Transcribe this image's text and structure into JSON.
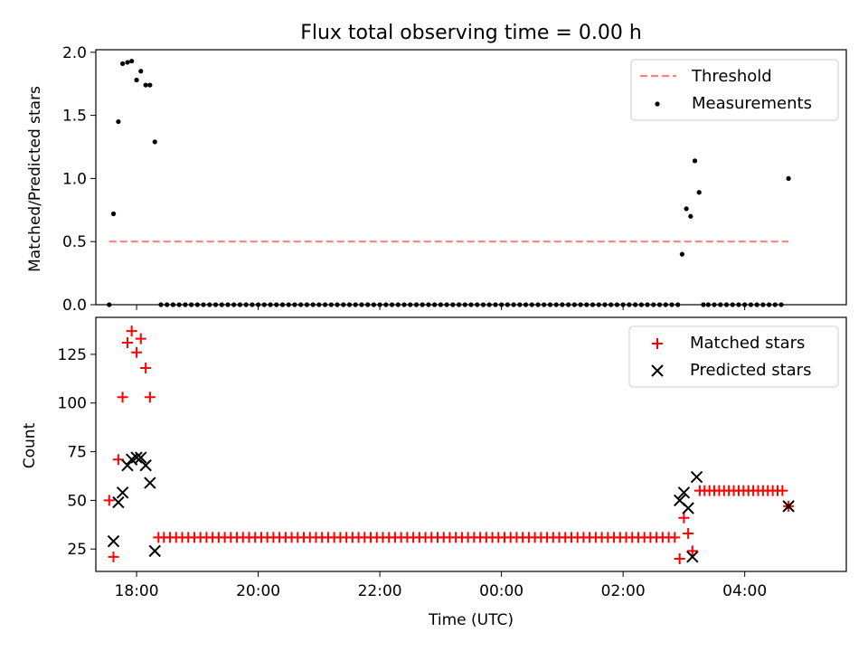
{
  "figure": {
    "title": "Flux total observing time = 0.00 h"
  },
  "chart_data": [
    {
      "type": "scatter",
      "ylabel": "Matched/Predicted stars",
      "xlim": [
        17.33,
        29.67
      ],
      "ylim": [
        0.0,
        2.02
      ],
      "yticks": [
        0.0,
        0.5,
        1.0,
        1.5,
        2.0
      ],
      "ytick_labels": [
        "0.0",
        "0.5",
        "1.0",
        "1.5",
        "2.0"
      ],
      "legend": {
        "placement": "top-right",
        "entries": [
          "Threshold",
          "Measurements"
        ]
      },
      "threshold": {
        "name": "Threshold",
        "y": 0.5,
        "x": [
          17.55,
          28.72
        ],
        "color": "#ff7f7f"
      },
      "series": [
        {
          "name": "Measurements",
          "color": "#000000",
          "marker": "dot",
          "points": [
            [
              17.55,
              0.0
            ],
            [
              17.62,
              0.72
            ],
            [
              17.7,
              1.45
            ],
            [
              17.77,
              1.91
            ],
            [
              17.85,
              1.92
            ],
            [
              17.92,
              1.93
            ],
            [
              18.0,
              1.78
            ],
            [
              18.07,
              1.85
            ],
            [
              18.15,
              1.74
            ],
            [
              18.22,
              1.74
            ],
            [
              18.3,
              1.29
            ],
            [
              18.4,
              0.0
            ],
            [
              18.5,
              0.0
            ],
            [
              18.6,
              0.0
            ],
            [
              18.7,
              0.0
            ],
            [
              18.8,
              0.0
            ],
            [
              18.9,
              0.0
            ],
            [
              19.0,
              0.0
            ],
            [
              19.1,
              0.0
            ],
            [
              19.2,
              0.0
            ],
            [
              19.3,
              0.0
            ],
            [
              19.4,
              0.0
            ],
            [
              19.5,
              0.0
            ],
            [
              19.6,
              0.0
            ],
            [
              19.7,
              0.0
            ],
            [
              19.8,
              0.0
            ],
            [
              19.9,
              0.0
            ],
            [
              20.0,
              0.0
            ],
            [
              20.1,
              0.0
            ],
            [
              20.2,
              0.0
            ],
            [
              20.3,
              0.0
            ],
            [
              20.4,
              0.0
            ],
            [
              20.5,
              0.0
            ],
            [
              20.6,
              0.0
            ],
            [
              20.7,
              0.0
            ],
            [
              20.8,
              0.0
            ],
            [
              20.9,
              0.0
            ],
            [
              21.0,
              0.0
            ],
            [
              21.1,
              0.0
            ],
            [
              21.2,
              0.0
            ],
            [
              21.3,
              0.0
            ],
            [
              21.4,
              0.0
            ],
            [
              21.5,
              0.0
            ],
            [
              21.6,
              0.0
            ],
            [
              21.7,
              0.0
            ],
            [
              21.8,
              0.0
            ],
            [
              21.9,
              0.0
            ],
            [
              22.0,
              0.0
            ],
            [
              22.1,
              0.0
            ],
            [
              22.2,
              0.0
            ],
            [
              22.3,
              0.0
            ],
            [
              22.4,
              0.0
            ],
            [
              22.5,
              0.0
            ],
            [
              22.6,
              0.0
            ],
            [
              22.7,
              0.0
            ],
            [
              22.8,
              0.0
            ],
            [
              22.9,
              0.0
            ],
            [
              23.0,
              0.0
            ],
            [
              23.1,
              0.0
            ],
            [
              23.2,
              0.0
            ],
            [
              23.3,
              0.0
            ],
            [
              23.4,
              0.0
            ],
            [
              23.5,
              0.0
            ],
            [
              23.6,
              0.0
            ],
            [
              23.7,
              0.0
            ],
            [
              23.8,
              0.0
            ],
            [
              23.9,
              0.0
            ],
            [
              24.0,
              0.0
            ],
            [
              24.1,
              0.0
            ],
            [
              24.2,
              0.0
            ],
            [
              24.3,
              0.0
            ],
            [
              24.4,
              0.0
            ],
            [
              24.5,
              0.0
            ],
            [
              24.6,
              0.0
            ],
            [
              24.7,
              0.0
            ],
            [
              24.8,
              0.0
            ],
            [
              24.9,
              0.0
            ],
            [
              25.0,
              0.0
            ],
            [
              25.1,
              0.0
            ],
            [
              25.2,
              0.0
            ],
            [
              25.3,
              0.0
            ],
            [
              25.4,
              0.0
            ],
            [
              25.5,
              0.0
            ],
            [
              25.6,
              0.0
            ],
            [
              25.7,
              0.0
            ],
            [
              25.8,
              0.0
            ],
            [
              25.9,
              0.0
            ],
            [
              26.0,
              0.0
            ],
            [
              26.1,
              0.0
            ],
            [
              26.2,
              0.0
            ],
            [
              26.3,
              0.0
            ],
            [
              26.4,
              0.0
            ],
            [
              26.5,
              0.0
            ],
            [
              26.6,
              0.0
            ],
            [
              26.7,
              0.0
            ],
            [
              26.8,
              0.0
            ],
            [
              26.9,
              0.0
            ],
            [
              26.97,
              0.4
            ],
            [
              27.04,
              0.76
            ],
            [
              27.11,
              0.7
            ],
            [
              27.18,
              1.14
            ],
            [
              27.25,
              0.89
            ],
            [
              27.32,
              0.0
            ],
            [
              27.4,
              0.0
            ],
            [
              27.5,
              0.0
            ],
            [
              27.6,
              0.0
            ],
            [
              27.7,
              0.0
            ],
            [
              27.8,
              0.0
            ],
            [
              27.9,
              0.0
            ],
            [
              28.0,
              0.0
            ],
            [
              28.1,
              0.0
            ],
            [
              28.2,
              0.0
            ],
            [
              28.3,
              0.0
            ],
            [
              28.4,
              0.0
            ],
            [
              28.5,
              0.0
            ],
            [
              28.6,
              0.0
            ],
            [
              28.72,
              1.0
            ]
          ]
        }
      ]
    },
    {
      "type": "scatter",
      "xlabel": "Time (UTC)",
      "ylabel": "Count",
      "xlim": [
        17.33,
        29.67
      ],
      "ylim": [
        13.5,
        144.0
      ],
      "xticks": [
        18,
        20,
        22,
        24,
        26,
        28
      ],
      "xtick_labels": [
        "18:00",
        "20:00",
        "22:00",
        "00:00",
        "02:00",
        "04:00"
      ],
      "yticks": [
        25,
        50,
        75,
        100,
        125
      ],
      "ytick_labels": [
        "25",
        "50",
        "75",
        "100",
        "125"
      ],
      "legend": {
        "placement": "top-right",
        "entries": [
          "Matched stars",
          "Predicted stars"
        ]
      },
      "series": [
        {
          "name": "Matched stars",
          "color": "#ff0000",
          "marker": "plus",
          "points": [
            [
              17.55,
              50
            ],
            [
              17.62,
              21
            ],
            [
              17.7,
              71
            ],
            [
              17.77,
              103
            ],
            [
              17.85,
              131
            ],
            [
              17.92,
              137
            ],
            [
              18.0,
              126
            ],
            [
              18.07,
              133
            ],
            [
              18.15,
              118
            ],
            [
              18.22,
              103
            ],
            [
              18.36,
              31
            ],
            [
              18.45,
              31
            ],
            [
              18.55,
              31
            ],
            [
              18.65,
              31
            ],
            [
              18.75,
              31
            ],
            [
              18.85,
              31
            ],
            [
              18.95,
              31
            ],
            [
              19.05,
              31
            ],
            [
              19.15,
              31
            ],
            [
              19.25,
              31
            ],
            [
              19.35,
              31
            ],
            [
              19.45,
              31
            ],
            [
              19.55,
              31
            ],
            [
              19.65,
              31
            ],
            [
              19.75,
              31
            ],
            [
              19.85,
              31
            ],
            [
              19.95,
              31
            ],
            [
              20.05,
              31
            ],
            [
              20.15,
              31
            ],
            [
              20.25,
              31
            ],
            [
              20.35,
              31
            ],
            [
              20.45,
              31
            ],
            [
              20.55,
              31
            ],
            [
              20.65,
              31
            ],
            [
              20.75,
              31
            ],
            [
              20.85,
              31
            ],
            [
              20.95,
              31
            ],
            [
              21.05,
              31
            ],
            [
              21.15,
              31
            ],
            [
              21.25,
              31
            ],
            [
              21.35,
              31
            ],
            [
              21.45,
              31
            ],
            [
              21.55,
              31
            ],
            [
              21.65,
              31
            ],
            [
              21.75,
              31
            ],
            [
              21.85,
              31
            ],
            [
              21.95,
              31
            ],
            [
              22.05,
              31
            ],
            [
              22.15,
              31
            ],
            [
              22.25,
              31
            ],
            [
              22.35,
              31
            ],
            [
              22.45,
              31
            ],
            [
              22.55,
              31
            ],
            [
              22.65,
              31
            ],
            [
              22.75,
              31
            ],
            [
              22.85,
              31
            ],
            [
              22.95,
              31
            ],
            [
              23.05,
              31
            ],
            [
              23.15,
              31
            ],
            [
              23.25,
              31
            ],
            [
              23.35,
              31
            ],
            [
              23.45,
              31
            ],
            [
              23.55,
              31
            ],
            [
              23.65,
              31
            ],
            [
              23.75,
              31
            ],
            [
              23.85,
              31
            ],
            [
              23.95,
              31
            ],
            [
              24.05,
              31
            ],
            [
              24.15,
              31
            ],
            [
              24.25,
              31
            ],
            [
              24.35,
              31
            ],
            [
              24.45,
              31
            ],
            [
              24.55,
              31
            ],
            [
              24.65,
              31
            ],
            [
              24.75,
              31
            ],
            [
              24.85,
              31
            ],
            [
              24.95,
              31
            ],
            [
              25.05,
              31
            ],
            [
              25.15,
              31
            ],
            [
              25.25,
              31
            ],
            [
              25.35,
              31
            ],
            [
              25.45,
              31
            ],
            [
              25.55,
              31
            ],
            [
              25.65,
              31
            ],
            [
              25.75,
              31
            ],
            [
              25.85,
              31
            ],
            [
              25.95,
              31
            ],
            [
              26.05,
              31
            ],
            [
              26.15,
              31
            ],
            [
              26.25,
              31
            ],
            [
              26.35,
              31
            ],
            [
              26.45,
              31
            ],
            [
              26.55,
              31
            ],
            [
              26.65,
              31
            ],
            [
              26.75,
              31
            ],
            [
              26.85,
              31
            ],
            [
              26.93,
              20
            ],
            [
              27.0,
              41
            ],
            [
              27.07,
              33
            ],
            [
              27.14,
              24
            ],
            [
              27.26,
              55
            ],
            [
              27.34,
              55
            ],
            [
              27.42,
              55
            ],
            [
              27.5,
              55
            ],
            [
              27.58,
              55
            ],
            [
              27.66,
              55
            ],
            [
              27.74,
              55
            ],
            [
              27.82,
              55
            ],
            [
              27.9,
              55
            ],
            [
              27.98,
              55
            ],
            [
              28.06,
              55
            ],
            [
              28.14,
              55
            ],
            [
              28.22,
              55
            ],
            [
              28.3,
              55
            ],
            [
              28.38,
              55
            ],
            [
              28.46,
              55
            ],
            [
              28.54,
              55
            ],
            [
              28.62,
              55
            ],
            [
              28.72,
              47
            ]
          ]
        },
        {
          "name": "Predicted stars",
          "color": "#000000",
          "marker": "x",
          "points": [
            [
              17.62,
              29
            ],
            [
              17.7,
              49
            ],
            [
              17.77,
              54
            ],
            [
              17.85,
              68
            ],
            [
              17.92,
              71
            ],
            [
              18.0,
              72
            ],
            [
              18.07,
              72
            ],
            [
              18.15,
              68
            ],
            [
              18.22,
              59
            ],
            [
              18.3,
              24
            ],
            [
              26.93,
              50
            ],
            [
              27.0,
              54
            ],
            [
              27.07,
              46
            ],
            [
              27.14,
              21
            ],
            [
              27.21,
              62
            ],
            [
              28.72,
              47
            ]
          ]
        }
      ]
    }
  ]
}
